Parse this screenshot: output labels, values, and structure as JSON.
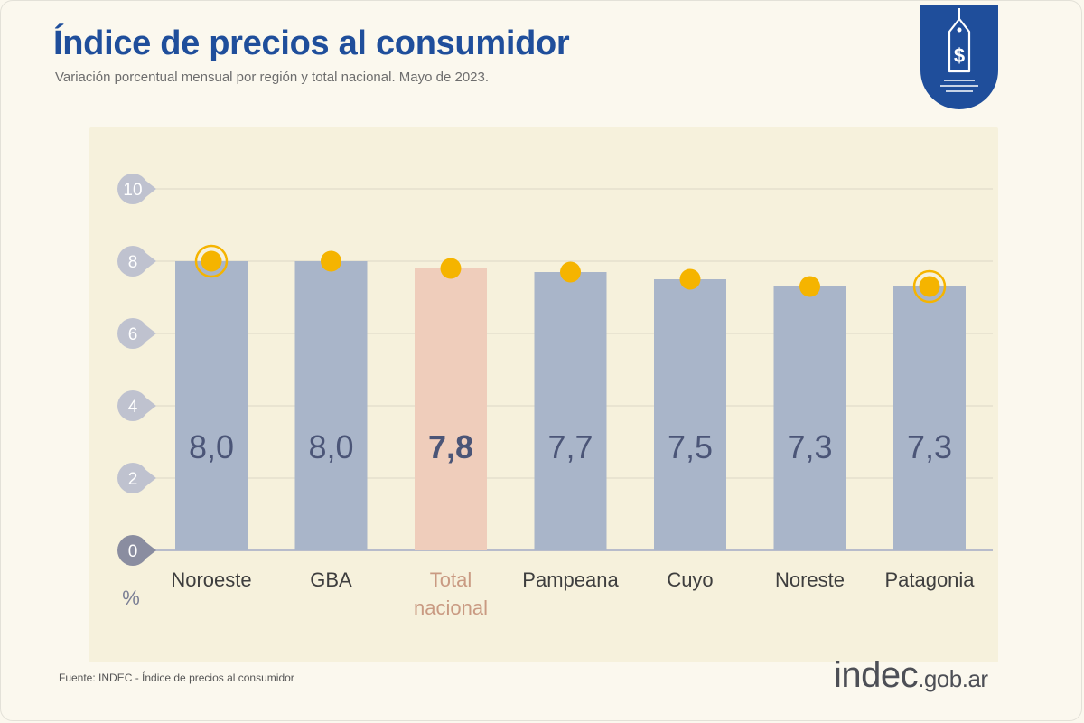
{
  "header": {
    "title": "Índice de precios al consumidor",
    "subtitle": "Variación porcentual mensual por región y total nacional. Mayo de 2023."
  },
  "badge": {
    "icon": "price-tag-dollar-icon"
  },
  "footer": {
    "source": "Fuente: INDEC - Índice de precios al consumidor",
    "brand_main": "indec",
    "brand_domain": ".gob.ar"
  },
  "colors": {
    "brand": "#1f4e9b",
    "bar": "#a9b5c9",
    "highlight_bar": "#efcdbb",
    "marker": "#f5b400",
    "value_text": "#4b5577",
    "highlight_label": "#c99a82",
    "axis_badge": "#bfc2cf",
    "axis_zero_badge": "#8a8da0"
  },
  "chart_data": {
    "type": "bar",
    "categories": [
      "Noroeste",
      "GBA",
      "Total nacional",
      "Pampeana",
      "Cuyo",
      "Noreste",
      "Patagonia"
    ],
    "values": [
      8.0,
      8.0,
      7.8,
      7.7,
      7.5,
      7.3,
      7.3
    ],
    "value_labels": [
      "8,0",
      "8,0",
      "7,8",
      "7,7",
      "7,5",
      "7,3",
      "7,3"
    ],
    "highlight_category": "Total nacional",
    "ringed_markers": [
      "Noroeste",
      "Patagonia"
    ],
    "y_ticks": [
      "0",
      "2",
      "4",
      "6",
      "8",
      "10"
    ],
    "y_unit": "%",
    "ylim": [
      0,
      10
    ],
    "grid": true,
    "title": "Índice de precios al consumidor",
    "xlabel": "",
    "ylabel": "%"
  }
}
